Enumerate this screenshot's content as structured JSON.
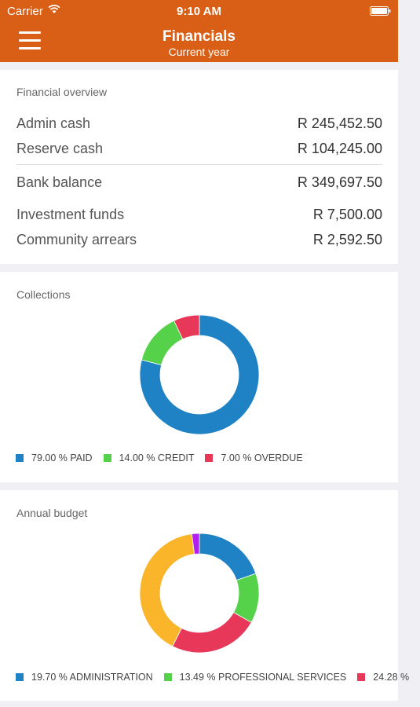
{
  "status_bar": {
    "carrier": "Carrier",
    "time": "9:10 AM"
  },
  "nav": {
    "title": "Financials",
    "subtitle": "Current year"
  },
  "overview": {
    "title": "Financial overview",
    "rows": [
      {
        "label": "Admin cash",
        "value": "R 245,452.50"
      },
      {
        "label": "Reserve cash",
        "value": "R 104,245.00"
      },
      {
        "label": "Bank balance",
        "value": "R 349,697.50"
      },
      {
        "label": "Investment funds",
        "value": "R 7,500.00"
      },
      {
        "label": "Community arrears",
        "value": "R 2,592.50"
      }
    ]
  },
  "collections": {
    "title": "Collections"
  },
  "budget": {
    "title": "Annual budget"
  },
  "colors": {
    "brand": "#d95f16",
    "blue": "#1e82c4",
    "green": "#55d14a",
    "red": "#e8385a",
    "yellow": "#fbb52a",
    "purple": "#b01ff0"
  },
  "chart_data": [
    {
      "type": "pie",
      "title": "Collections",
      "slices": [
        {
          "label": "PAID",
          "value": 79.0,
          "display": "79.00 % PAID",
          "color": "#1e82c4"
        },
        {
          "label": "CREDIT",
          "value": 14.0,
          "display": "14.00 % CREDIT",
          "color": "#55d14a"
        },
        {
          "label": "OVERDUE",
          "value": 7.0,
          "display": "7.00 % OVERDUE",
          "color": "#e8385a"
        }
      ]
    },
    {
      "type": "pie",
      "title": "Annual budget",
      "slices": [
        {
          "label": "ADMINISTRATION",
          "value": 19.7,
          "display": "19.70 % ADMINISTRATION",
          "color": "#1e82c4"
        },
        {
          "label": "PROFESSIONAL SERVICES",
          "value": 13.49,
          "display": "13.49 % PROFESSIONAL SERVICES",
          "color": "#55d14a"
        },
        {
          "label": "",
          "value": 24.28,
          "display": "24.28 %",
          "color": "#e8385a"
        },
        {
          "label": "",
          "value": 40.5,
          "display": "",
          "color": "#fbb52a"
        },
        {
          "label": "",
          "value": 2.03,
          "display": "",
          "color": "#b01ff0"
        }
      ]
    }
  ]
}
